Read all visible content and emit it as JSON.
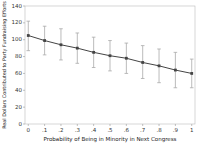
{
  "chart_data": {
    "type": "line",
    "xlabel": "Probability of Being in Minority in Next Congress",
    "ylabel": "Real Dollars Contributed to Party Fundraising Efforts",
    "x": [
      0.0,
      0.1,
      0.2,
      0.3,
      0.4,
      0.5,
      0.6,
      0.7,
      0.8,
      0.9,
      1.0
    ],
    "values": [
      105,
      99,
      94,
      90,
      85,
      81,
      78,
      73,
      69,
      64,
      60
    ],
    "y_upper": [
      122,
      116,
      113,
      108,
      103,
      99,
      96,
      93,
      89,
      85,
      77
    ],
    "y_lower": [
      87,
      82,
      76,
      72,
      67,
      63,
      60,
      54,
      49,
      43,
      43
    ],
    "color": "#444444",
    "marker": "square",
    "xlim": [
      -0.02,
      1.02
    ],
    "ylim": [
      0,
      140
    ],
    "xticks": [
      0,
      {
        "value": 0.1,
        "label": ".1"
      },
      {
        "value": 0.2,
        "label": ".2"
      },
      {
        "value": 0.3,
        "label": ".3"
      },
      {
        "value": 0.4,
        "label": ".4"
      },
      {
        "value": 0.5,
        "label": ".5"
      },
      {
        "value": 0.6,
        "label": ".6"
      },
      {
        "value": 0.7,
        "label": ".7"
      },
      {
        "value": 0.8,
        "label": ".8"
      },
      {
        "value": 0.9,
        "label": ".9"
      },
      1
    ],
    "yticks": [
      0,
      20,
      40,
      60,
      80,
      100,
      120,
      140
    ]
  }
}
